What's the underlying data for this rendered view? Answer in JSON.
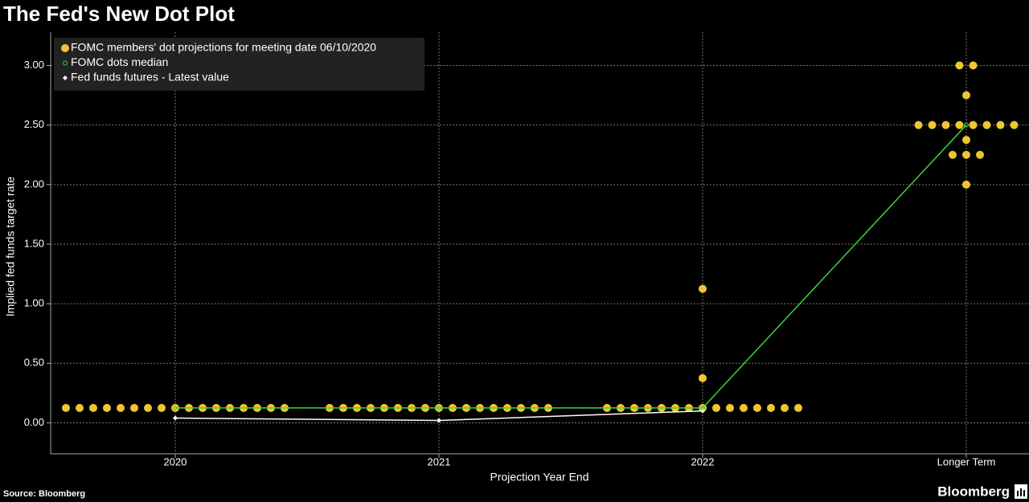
{
  "chart_data": {
    "type": "dotplot",
    "title": "The Fed's New Dot Plot",
    "y_label": "Implied fed funds target rate",
    "x_label": "Projection Year End",
    "source": "Source: Bloomberg",
    "brand": "Bloomberg",
    "categories": [
      "2020",
      "2021",
      "2022",
      "Longer Term"
    ],
    "ylim": [
      -0.26,
      3.28
    ],
    "yticks": [
      {
        "value": 0,
        "label": "0.00"
      },
      {
        "value": 0.5,
        "label": "0.50"
      },
      {
        "value": 1,
        "label": "1.00"
      },
      {
        "value": 1.5,
        "label": "1.50"
      },
      {
        "value": 2,
        "label": "2.00"
      },
      {
        "value": 2.5,
        "label": "2.50"
      },
      {
        "value": 3,
        "label": "3.00"
      }
    ],
    "grid": true,
    "series": [
      {
        "name": "FOMC members' dot projections for meeting date 06/10/2020",
        "color": "#f0c531",
        "values": [
          [
            0.125,
            0.125,
            0.125,
            0.125,
            0.125,
            0.125,
            0.125,
            0.125,
            0.125,
            0.125,
            0.125,
            0.125,
            0.125,
            0.125,
            0.125,
            0.125,
            0.125
          ],
          [
            0.125,
            0.125,
            0.125,
            0.125,
            0.125,
            0.125,
            0.125,
            0.125,
            0.125,
            0.125,
            0.125,
            0.125,
            0.125,
            0.125,
            0.125,
            0.125,
            0.125
          ],
          [
            0.125,
            0.125,
            0.125,
            0.125,
            0.125,
            0.125,
            0.125,
            0.125,
            0.125,
            0.125,
            0.125,
            0.125,
            0.125,
            0.125,
            0.125,
            0.375,
            1.125
          ],
          [
            3,
            3,
            2.75,
            2.5,
            2.5,
            2.5,
            2.5,
            2.5,
            2.5,
            2.5,
            2.5,
            2.375,
            2.25,
            2.25,
            2.25,
            2
          ]
        ]
      },
      {
        "name": "FOMC dots median",
        "color": "#3dd43d",
        "values": [
          0.125,
          0.125,
          0.125,
          2.5
        ]
      },
      {
        "name": "Fed funds futures - Latest value",
        "color": "#ffffff",
        "values": [
          0.04,
          0.02,
          0.1,
          null
        ]
      }
    ]
  }
}
